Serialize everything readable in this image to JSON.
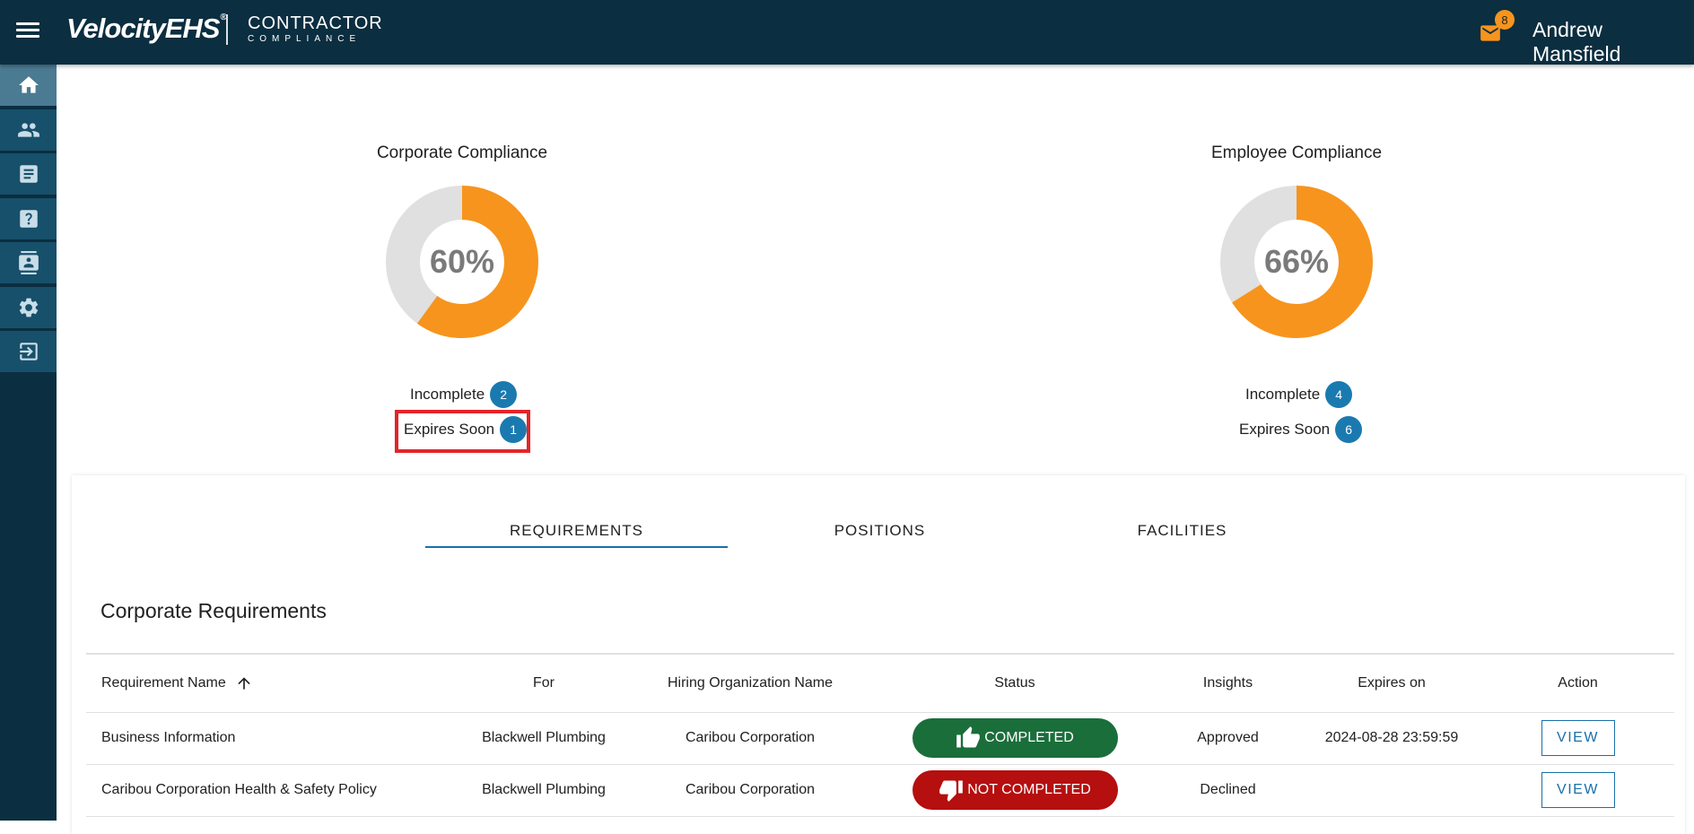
{
  "header": {
    "brand": "VelocityEHS",
    "brand_mark": "®",
    "product_line1": "CONTRACTOR",
    "product_line2": "COMPLIANCE",
    "mail_count": "8",
    "user_name": "Andrew Mansfield"
  },
  "sidebar": {
    "items": [
      {
        "icon": "home-icon",
        "active": true
      },
      {
        "icon": "people-icon",
        "active": false
      },
      {
        "icon": "document-icon",
        "active": false
      },
      {
        "icon": "help-icon",
        "active": false
      },
      {
        "icon": "contacts-icon",
        "active": false
      },
      {
        "icon": "gear-icon",
        "active": false
      },
      {
        "icon": "logout-icon",
        "active": false
      }
    ]
  },
  "corporate": {
    "title": "Corporate Compliance",
    "percent_label": "60%",
    "percent": 60,
    "incomplete_label": "Incomplete",
    "incomplete_count": "2",
    "expires_label": "Expires Soon",
    "expires_count": "1"
  },
  "employee": {
    "title": "Employee Compliance",
    "percent_label": "66%",
    "percent": 66,
    "incomplete_label": "Incomplete",
    "incomplete_count": "4",
    "expires_label": "Expires Soon",
    "expires_count": "6"
  },
  "tabs": [
    {
      "label": "REQUIREMENTS",
      "active": true
    },
    {
      "label": "POSITIONS",
      "active": false
    },
    {
      "label": "FACILITIES",
      "active": false
    }
  ],
  "section_title": "Corporate Requirements",
  "table": {
    "headers": {
      "name": "Requirement Name",
      "for": "For",
      "org": "Hiring Organization Name",
      "status": "Status",
      "insights": "Insights",
      "expires": "Expires on",
      "action": "Action"
    },
    "rows": [
      {
        "name": "Business Information",
        "for": "Blackwell Plumbing",
        "org": "Caribou Corporation",
        "status": "COMPLETED",
        "insights": "Approved",
        "expires": "2024-08-28 23:59:59",
        "action": "VIEW"
      },
      {
        "name": "Caribou Corporation Health & Safety Policy",
        "for": "Blackwell Plumbing",
        "org": "Caribou Corporation",
        "status": "NOT COMPLETED",
        "insights": "Declined",
        "expires": "",
        "action": "VIEW"
      }
    ]
  },
  "colors": {
    "header_bg": "#0b2e40",
    "accent_orange": "#f7941d",
    "badge_blue": "#1a7ab0",
    "completed_green": "#1a6e3a",
    "not_completed_red": "#b50f0f",
    "highlight_red": "#e5242a"
  }
}
